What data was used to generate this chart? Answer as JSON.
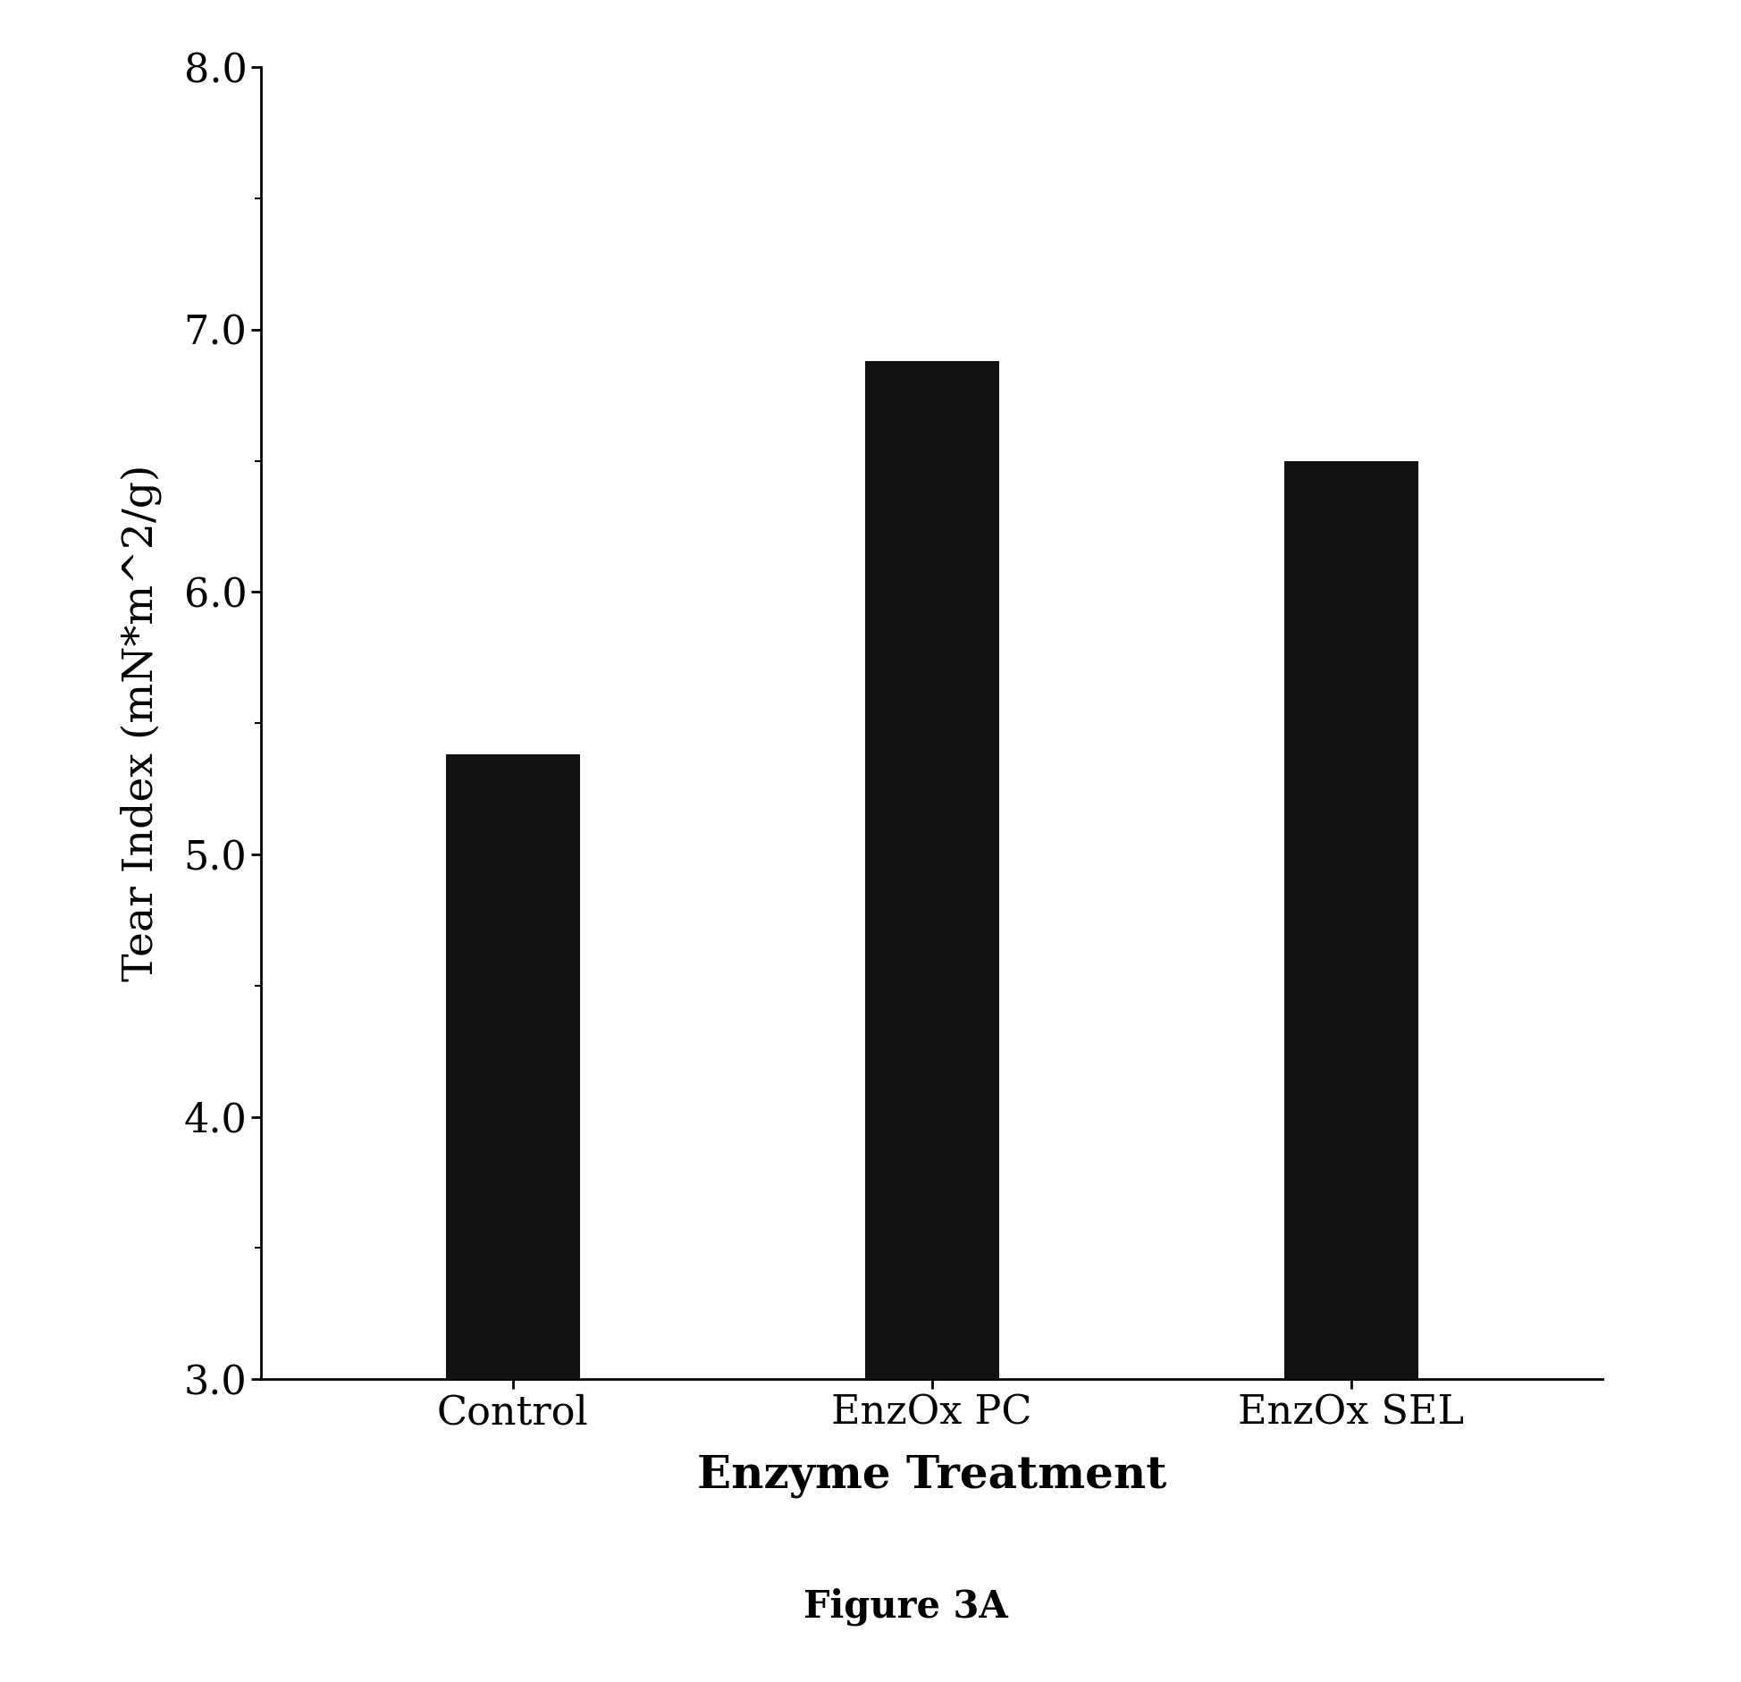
{
  "categories": [
    "Control",
    "EnzOx PC",
    "EnzOx SEL"
  ],
  "values": [
    5.38,
    6.88,
    6.5
  ],
  "bar_color": "#111111",
  "bar_width": 0.32,
  "ylim": [
    3.0,
    8.0
  ],
  "yticks": [
    3.0,
    4.0,
    5.0,
    6.0,
    7.0,
    8.0
  ],
  "ylabel": "Tear Index (mN*m^2/g)",
  "xlabel": "Enzyme Treatment",
  "caption": "Figure 3A",
  "background_color": "#ffffff",
  "label_fontsize": 34,
  "tick_fontsize": 32,
  "caption_fontsize": 30,
  "xlabel_fontsize": 36,
  "minor_tick_interval": 0.5,
  "x_positions": [
    0,
    1,
    2
  ],
  "xlim_left": -0.6,
  "xlim_right": 2.6
}
